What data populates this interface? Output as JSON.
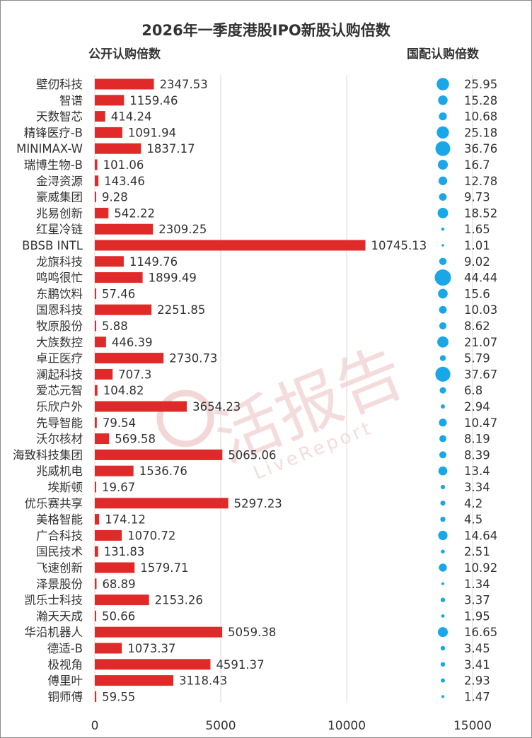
{
  "chart_data": {
    "type": "bar",
    "title": "2026年一季度港股IPO新股认购倍数",
    "left_header": "公开认购倍数",
    "right_header": "国配认购倍数",
    "xlim": [
      0,
      15000
    ],
    "x_ticks": [
      0,
      5000,
      10000,
      15000
    ],
    "x_tick_labels": [
      "0",
      "5000",
      "10000",
      "15000"
    ],
    "grid": true,
    "watermark": "活报告",
    "watermark_sub": "LiveReport",
    "colors": {
      "bar": "#e02a2a",
      "bubble": "#1aa7e8",
      "grid": "#d9d9d9",
      "text": "#333333"
    },
    "categories": [
      "壁仞科技",
      "智谱",
      "天数智芯",
      "精锋医疗-B",
      "MINIMAX-W",
      "瑞博生物-B",
      "金浔资源",
      "豪威集团",
      "兆易创新",
      "红星冷链",
      "BBSB INTL",
      "龙旗科技",
      "鸣鸣很忙",
      "东鹏饮料",
      "国恩科技",
      "牧原股份",
      "大族数控",
      "卓正医疗",
      "澜起科技",
      "爱芯元智",
      "乐欣户外",
      "先导智能",
      "沃尔核材",
      "海致科技集团",
      "兆威机电",
      "埃斯顿",
      "优乐赛共享",
      "美格智能",
      "广合科技",
      "国民技术",
      "飞速创新",
      "泽景股份",
      "凯乐士科技",
      "瀚天天成",
      "华沿机器人",
      "德适-B",
      "极视角",
      "傅里叶",
      "铜师傅"
    ],
    "series": [
      {
        "name": "公开认购倍数",
        "values": [
          2347.53,
          1159.46,
          414.24,
          1091.94,
          1837.17,
          101.06,
          143.46,
          9.28,
          542.22,
          2309.25,
          10745.13,
          1149.76,
          1899.49,
          57.46,
          2251.85,
          5.88,
          446.39,
          2730.73,
          707.3,
          104.82,
          3654.23,
          79.54,
          569.58,
          5065.06,
          1536.76,
          19.67,
          5297.23,
          174.12,
          1070.72,
          131.83,
          1579.71,
          68.89,
          2153.26,
          50.66,
          5059.38,
          1073.37,
          4591.37,
          3118.43,
          59.55
        ],
        "labels": [
          "2347.53",
          "1159.46",
          "414.24",
          "1091.94",
          "1837.17",
          "101.06",
          "143.46",
          "9.28",
          "542.22",
          "2309.25",
          "10745.13",
          "1149.76",
          "1899.49",
          "57.46",
          "2251.85",
          "5.88",
          "446.39",
          "2730.73",
          "707.3",
          "104.82",
          "3654.23",
          "79.54",
          "569.58",
          "5065.06",
          "1536.76",
          "19.67",
          "5297.23",
          "174.12",
          "1070.72",
          "131.83",
          "1579.71",
          "68.89",
          "2153.26",
          "50.66",
          "5059.38",
          "1073.37",
          "4591.37",
          "3118.43",
          "59.55"
        ]
      },
      {
        "name": "国配认购倍数",
        "values": [
          25.95,
          15.28,
          10.68,
          25.18,
          36.76,
          16.7,
          12.78,
          9.73,
          18.52,
          1.65,
          1.01,
          9.02,
          44.44,
          15.6,
          10.03,
          8.62,
          21.07,
          5.79,
          37.67,
          6.8,
          2.94,
          10.47,
          8.19,
          8.39,
          13.4,
          3.34,
          4.2,
          4.5,
          14.64,
          2.51,
          10.92,
          1.34,
          3.37,
          1.95,
          16.65,
          3.45,
          3.41,
          2.93,
          1.47
        ],
        "labels": [
          "25.95",
          "15.28",
          "10.68",
          "25.18",
          "36.76",
          "16.7",
          "12.78",
          "9.73",
          "18.52",
          "1.65",
          "1.01",
          "9.02",
          "44.44",
          "15.6",
          "10.03",
          "8.62",
          "21.07",
          "5.79",
          "37.67",
          "6.8",
          "2.94",
          "10.47",
          "8.19",
          "8.39",
          "13.4",
          "3.34",
          "4.2",
          "4.5",
          "14.64",
          "2.51",
          "10.92",
          "1.34",
          "3.37",
          "1.95",
          "16.65",
          "3.45",
          "3.41",
          "2.93",
          "1.47"
        ]
      }
    ]
  }
}
